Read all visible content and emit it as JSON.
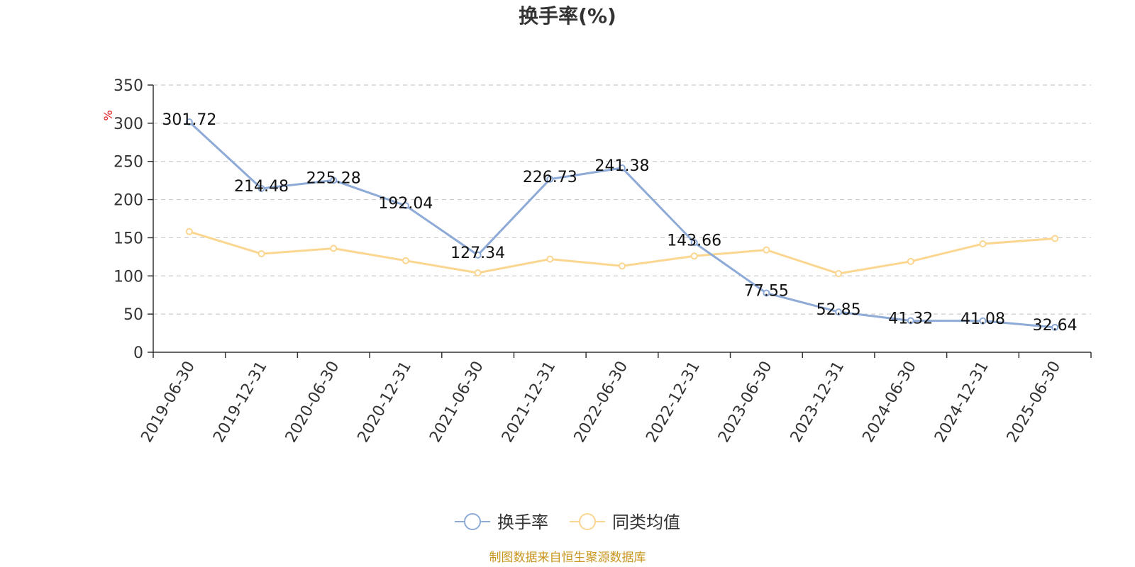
{
  "chart_data": {
    "type": "line",
    "title": "换手率(%)",
    "ylabel": "%",
    "xlabel": "",
    "ylim": [
      0,
      350
    ],
    "yticks": [
      0,
      50,
      100,
      150,
      200,
      250,
      300,
      350
    ],
    "grid": true,
    "legend_position": "bottom",
    "categories": [
      "2019-06-30",
      "2019-12-31",
      "2020-06-30",
      "2020-12-31",
      "2021-06-30",
      "2021-12-31",
      "2022-06-30",
      "2022-12-31",
      "2023-06-30",
      "2023-12-31",
      "2024-06-30",
      "2024-12-31",
      "2025-06-30"
    ],
    "series": [
      {
        "name": "换手率",
        "color": "#8eaad6",
        "show_labels": true,
        "values": [
          301.72,
          214.48,
          225.28,
          192.04,
          127.34,
          226.73,
          241.38,
          143.66,
          77.55,
          52.85,
          41.32,
          41.08,
          32.64
        ],
        "labels": [
          "301.72",
          "214.48",
          "225.28",
          "192.04",
          "127.34",
          "226.73",
          "241.38",
          "143.66",
          "77.55",
          "52.85",
          "41.32",
          "41.08",
          "32.64"
        ]
      },
      {
        "name": "同类均值",
        "color": "#fbd691",
        "show_labels": false,
        "values": [
          158,
          129,
          136,
          120,
          104,
          122,
          113,
          126,
          134,
          103,
          119,
          142,
          149
        ]
      }
    ]
  },
  "source_note": "制图数据来自恒生聚源数据库"
}
